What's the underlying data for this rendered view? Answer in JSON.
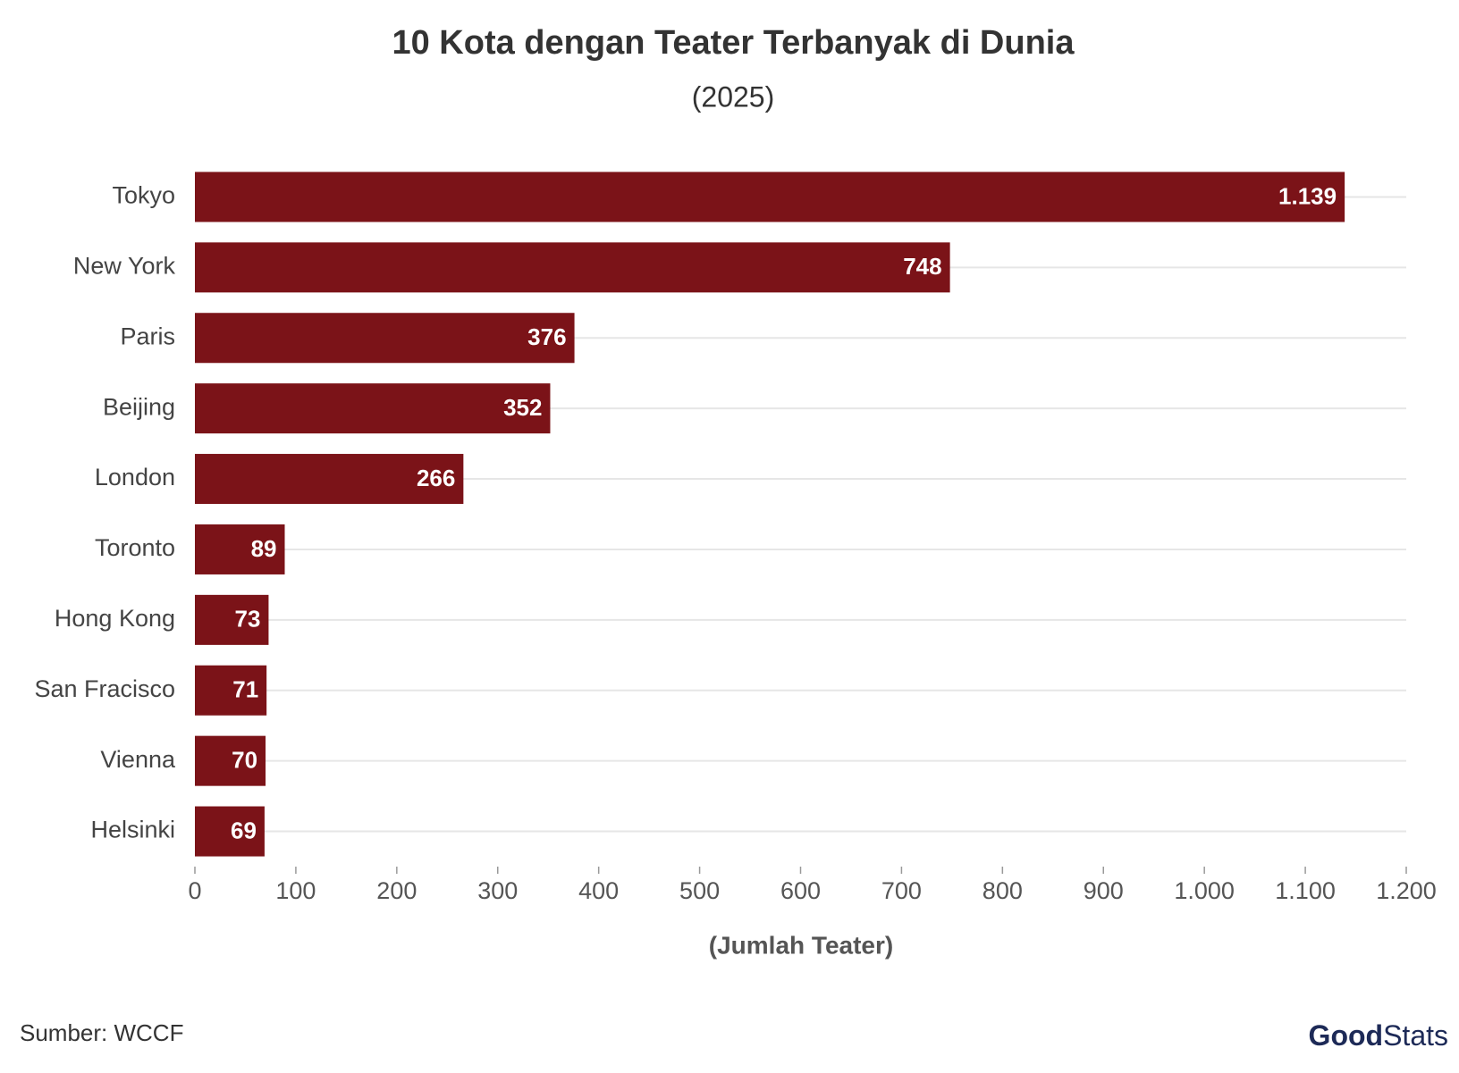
{
  "chart_data": {
    "type": "bar",
    "orientation": "horizontal",
    "title": "10 Kota dengan Teater Terbanyak di Dunia",
    "subtitle": "(2025)",
    "x_label": "(Jumlah Teater)",
    "categories": [
      "Tokyo",
      "New York",
      "Paris",
      "Beijing",
      "London",
      "Toronto",
      "Hong Kong",
      "San Fracisco",
      "Vienna",
      "Helsinki"
    ],
    "values": [
      1139,
      748,
      376,
      352,
      266,
      89,
      73,
      71,
      70,
      69
    ],
    "value_labels": [
      "1.139",
      "748",
      "376",
      "352",
      "266",
      "89",
      "73",
      "71",
      "70",
      "69"
    ],
    "color": "#7b1318",
    "xlim": [
      0,
      1200
    ],
    "xticks": [
      0,
      100,
      200,
      300,
      400,
      500,
      600,
      700,
      800,
      900,
      {
        "value": 1000,
        "label": "1.000"
      },
      {
        "value": 1100,
        "label": "1.100"
      },
      {
        "value": 1200,
        "label": "1.200"
      }
    ],
    "grid": true,
    "source": "Sumber: WCCF",
    "brand": [
      "Good",
      "Stats"
    ]
  }
}
